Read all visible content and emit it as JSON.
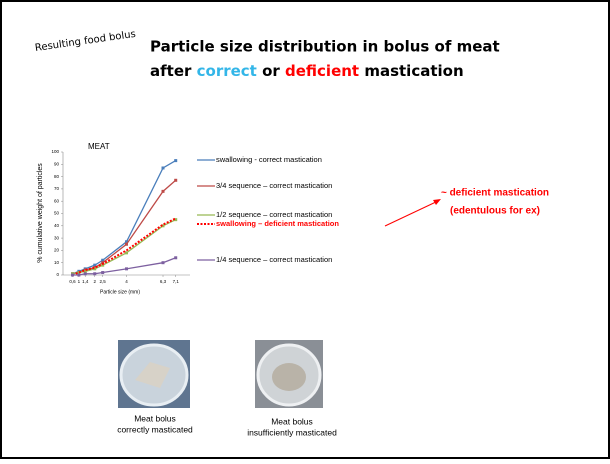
{
  "slide": {
    "tag": "Resulting food bolus",
    "title_line1": "Particle size distribution in bolus of meat",
    "title_line2": [
      "after ",
      "correct",
      " or ",
      "deficient",
      " mastication"
    ],
    "annotation": [
      "~ deficient mastication",
      "(edentulous for ex)"
    ],
    "photos": [
      {
        "caption": [
          "Meat bolus",
          "correctly masticated"
        ]
      },
      {
        "caption": [
          "Meat bolus",
          "insufficiently masticated"
        ]
      }
    ]
  },
  "chart_data": {
    "type": "line",
    "title": "MEAT",
    "x_label": "Particle size (mm)",
    "y_label": "% cumulative weight of particles",
    "x": [
      0.6,
      1,
      1.4,
      2,
      2.5,
      4,
      6.3,
      7.1
    ],
    "xlim": [
      0,
      8
    ],
    "xticks": [
      {
        "value": 0.6,
        "label": "0,6"
      },
      1,
      {
        "value": 1.4,
        "label": "1,4"
      },
      2,
      {
        "value": 2.5,
        "label": "2,5"
      },
      4,
      {
        "value": 6.3,
        "label": "6,3"
      },
      {
        "value": 7.1,
        "label": "7,1"
      }
    ],
    "ylim": [
      0,
      100
    ],
    "yticks": [
      0,
      10,
      20,
      30,
      40,
      50,
      60,
      70,
      80,
      90,
      100
    ],
    "series": [
      {
        "name": "swallowing - correct mastication",
        "color": "#4a7ebb",
        "values": [
          1,
          3,
          5,
          8,
          12,
          27,
          87,
          93
        ]
      },
      {
        "name": "3/4 sequence – correct mastication",
        "color": "#be4b48",
        "values": [
          1,
          2,
          4,
          6,
          10,
          25,
          68,
          77
        ]
      },
      {
        "name": "1/2 sequence – correct mastication",
        "color": "#98b954",
        "values": [
          1,
          2,
          3,
          5,
          8,
          18,
          40,
          45
        ]
      },
      {
        "name": "swallowing – deficient mastication",
        "color": "#ff0000",
        "dashed": true,
        "values": [
          0,
          2,
          4,
          6,
          9,
          20,
          41,
          46
        ]
      },
      {
        "name": "1/4 sequence – correct mastication",
        "color": "#7d60a0",
        "values": [
          0,
          0,
          1,
          1,
          2,
          5,
          10,
          14
        ]
      }
    ]
  }
}
